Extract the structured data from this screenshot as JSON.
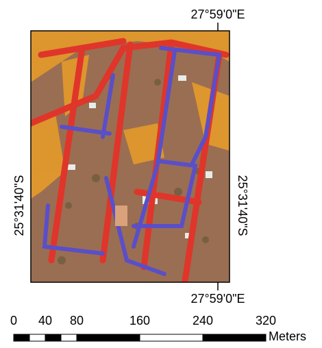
{
  "map": {
    "coordinates": {
      "top_longitude": "27°59'0\"E",
      "bottom_longitude": "27°59'0\"E",
      "left_latitude": "25°31'40\"S",
      "right_latitude": "25°31'40\"S"
    },
    "scale_bar": {
      "ticks": [
        0,
        40,
        80,
        160,
        240,
        320
      ],
      "unit": "Meters"
    }
  }
}
